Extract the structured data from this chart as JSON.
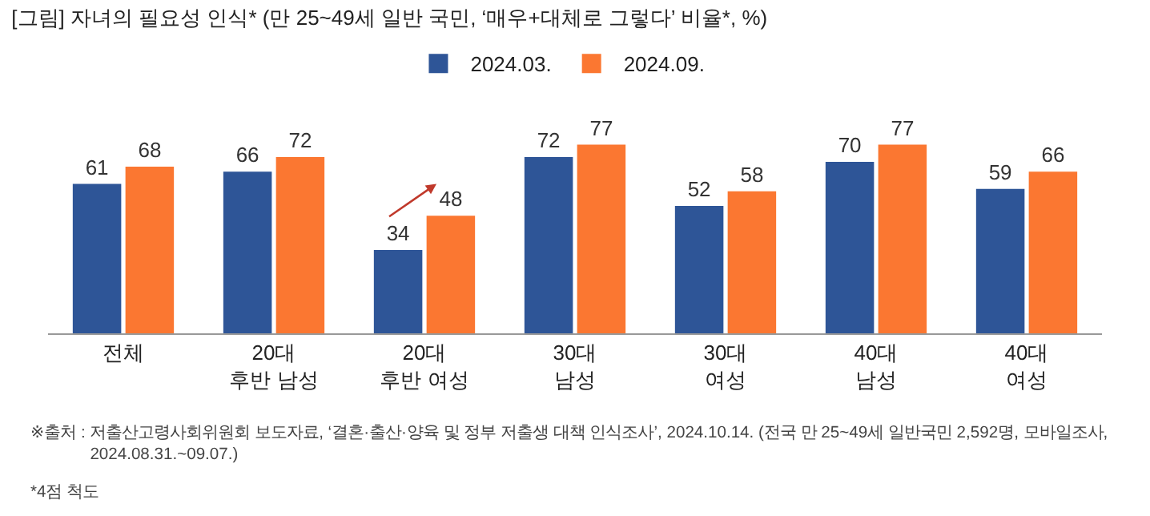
{
  "chart_data": {
    "type": "bar",
    "title": "[그림] 자녀의 필요성 인식* (만 25~49세 일반 국민, ‘매우+대체로 그렇다’ 비율*, %)",
    "categories": [
      "전체",
      "20대\n후반 남성",
      "20대\n후반 여성",
      "30대\n남성",
      "30대\n여성",
      "40대\n남성",
      "40대\n여성"
    ],
    "series": [
      {
        "name": "2024.03.",
        "color": "#2e5597",
        "values": [
          61,
          66,
          34,
          72,
          52,
          70,
          59
        ]
      },
      {
        "name": "2024.09.",
        "color": "#fb7731",
        "values": [
          68,
          72,
          48,
          77,
          58,
          77,
          66
        ]
      }
    ],
    "data_labels": true,
    "legend": "top",
    "grid": false,
    "annotations": [
      "※출처 : 저출산고령사회위원회 보도자료, ‘결혼·출산·양육 및 정부 저출생 대책 인식조사’, 2024.10.14. (전국 만 25~49세 일반국민 2,592명, 모바일조사,\n2024.08.31.~09.07.)",
      "*4점 척도"
    ]
  }
}
